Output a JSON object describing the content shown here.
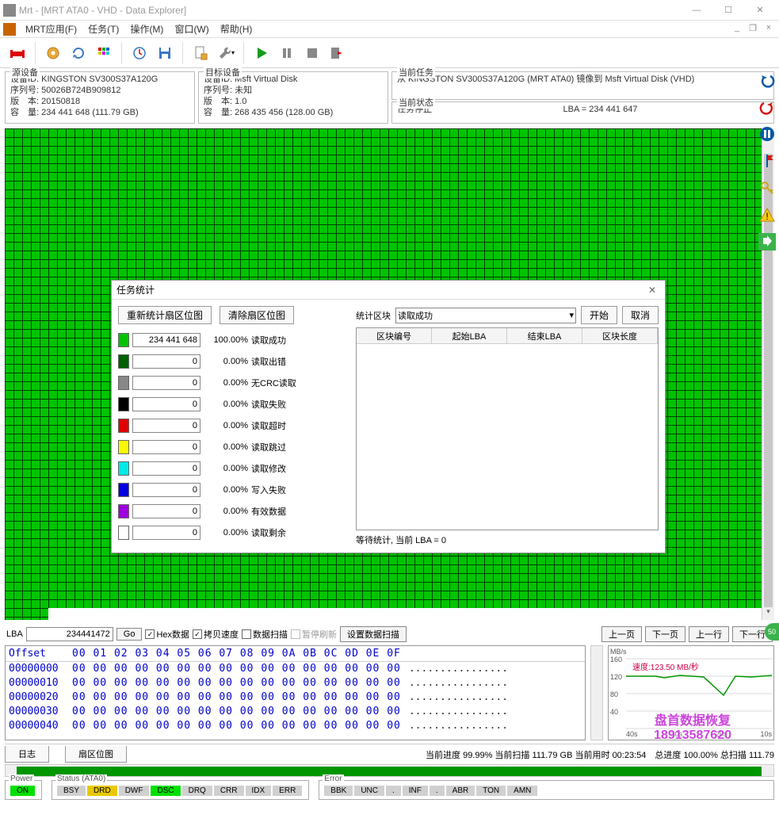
{
  "window": {
    "title": "Mrt - [MRT ATA0 - VHD - Data Explorer]"
  },
  "menu": {
    "items": [
      "MRT应用(F)",
      "任务(T)",
      "操作(M)",
      "窗口(W)",
      "帮助(H)"
    ]
  },
  "panels": {
    "src": {
      "legend": "源设备",
      "device_id_label": "设备ID:",
      "device_id": "KINGSTON SV300S37A120G",
      "serial_label": "序列号:",
      "serial": "50026B724B909812",
      "version_label": "版　本:",
      "version": "20150818",
      "capacity_label": "容　量:",
      "capacity": "234 441 648 (111.79 GB)"
    },
    "dst": {
      "legend": "目标设备",
      "device_id_label": "设备ID:",
      "device_id": "Msft Virtual Disk",
      "serial_label": "序列号:",
      "serial": "未知",
      "version_label": "版　本:",
      "version": "1.0",
      "capacity_label": "容　量:",
      "capacity": "268 435 456 (128.00 GB)"
    },
    "task": {
      "legend": "当前任务",
      "text": "从 KINGSTON SV300S37A120G (MRT ATA0) 镜像到 Msft Virtual Disk (VHD)"
    },
    "state": {
      "legend": "当前状态",
      "text": "任务停止",
      "lba": "LBA = 234 441 647"
    }
  },
  "dialog": {
    "title": "任务统计",
    "btn_recount": "重新统计扇区位图",
    "btn_clear": "清除扇区位图",
    "label_block": "统计区块",
    "select_value": "读取成功",
    "btn_start": "开始",
    "btn_cancel": "取消",
    "table_headers": [
      "区块编号",
      "起始LBA",
      "结束LBA",
      "区块长度"
    ],
    "status": "等待统计, 当前 LBA = 0",
    "stats": [
      {
        "color": "#00c400",
        "value": "234 441 648",
        "pct": "100.00%",
        "label": "读取成功"
      },
      {
        "color": "#006000",
        "value": "0",
        "pct": "0.00%",
        "label": "读取出错"
      },
      {
        "color": "#888888",
        "value": "0",
        "pct": "0.00%",
        "label": "无CRC读取"
      },
      {
        "color": "#000000",
        "value": "0",
        "pct": "0.00%",
        "label": "读取失败"
      },
      {
        "color": "#e00000",
        "value": "0",
        "pct": "0.00%",
        "label": "读取超时"
      },
      {
        "color": "#f8f800",
        "value": "0",
        "pct": "0.00%",
        "label": "读取跳过"
      },
      {
        "color": "#00e8e8",
        "value": "0",
        "pct": "0.00%",
        "label": "读取修改"
      },
      {
        "color": "#0000e0",
        "value": "0",
        "pct": "0.00%",
        "label": "写入失败"
      },
      {
        "color": "#a000e0",
        "value": "0",
        "pct": "0.00%",
        "label": "有效数据"
      },
      {
        "color": "#ffffff",
        "value": "0",
        "pct": "0.00%",
        "label": "读取剩余"
      }
    ]
  },
  "lba_nav": {
    "label": "LBA",
    "value": "234441472",
    "go": "Go",
    "chk_hex": "Hex数据",
    "chk_copy": "拷贝速度",
    "chk_scan": "数据扫描",
    "chk_pause": "暂停刷新",
    "btn_set": "设置数据扫描",
    "btn_prev_page": "上一页",
    "btn_next_page": "下一页",
    "btn_prev_row": "上一行",
    "btn_next_row": "下一行"
  },
  "hex": {
    "header": "Offset",
    "cols": "00 01 02 03 04 05 06 07 08 09 0A 0B 0C 0D 0E 0F",
    "rows": [
      {
        "off": "00000000",
        "bytes": "00 00 00 00 00 00 00 00 00 00 00 00 00 00 00 00",
        "ascii": "................"
      },
      {
        "off": "00000010",
        "bytes": "00 00 00 00 00 00 00 00 00 00 00 00 00 00 00 00",
        "ascii": "................"
      },
      {
        "off": "00000020",
        "bytes": "00 00 00 00 00 00 00 00 00 00 00 00 00 00 00 00",
        "ascii": "................"
      },
      {
        "off": "00000030",
        "bytes": "00 00 00 00 00 00 00 00 00 00 00 00 00 00 00 00",
        "ascii": "................"
      },
      {
        "off": "00000040",
        "bytes": "00 00 00 00 00 00 00 00 00 00 00 00 00 00 00 00",
        "ascii": "................"
      }
    ]
  },
  "speed_chart": {
    "unit": "MB/s",
    "rate": "速度:123.50 MB/秒",
    "y_ticks": [
      "160",
      "120",
      "80",
      "40"
    ],
    "x_ticks": [
      "40s",
      "30s",
      "20s",
      "10s"
    ],
    "line_color": "#009600",
    "grid_color": "#d8d8d8"
  },
  "tabs": {
    "log": "日志",
    "sector": "扇区位图"
  },
  "progress": {
    "text": "当前进度 99.99% 当前扫描 111.79 GB 当前用时 00:23:54　总进度 100.00% 总扫描 111.79"
  },
  "bottom": {
    "power": {
      "legend": "Power",
      "on": "ON"
    },
    "status": {
      "legend": "Status (ATA0)",
      "leds": [
        {
          "name": "BSY",
          "cls": "led-off"
        },
        {
          "name": "DRD",
          "cls": "led-amber"
        },
        {
          "name": "DWF",
          "cls": "led-off"
        },
        {
          "name": "DSC",
          "cls": "led-on"
        },
        {
          "name": "DRQ",
          "cls": "led-off"
        },
        {
          "name": "CRR",
          "cls": "led-off"
        },
        {
          "name": "IDX",
          "cls": "led-off"
        },
        {
          "name": "ERR",
          "cls": "led-off"
        }
      ]
    },
    "error": {
      "legend": "Error",
      "leds": [
        {
          "name": "BBK"
        },
        {
          "name": "UNC"
        },
        {
          "name": "."
        },
        {
          "name": "INF"
        },
        {
          "name": "."
        },
        {
          "name": "ABR"
        },
        {
          "name": "TON"
        },
        {
          "name": "AMN"
        }
      ]
    }
  },
  "watermark": {
    "line1": "盘首数据恢复",
    "line2": "18913587620"
  },
  "floater": "50"
}
